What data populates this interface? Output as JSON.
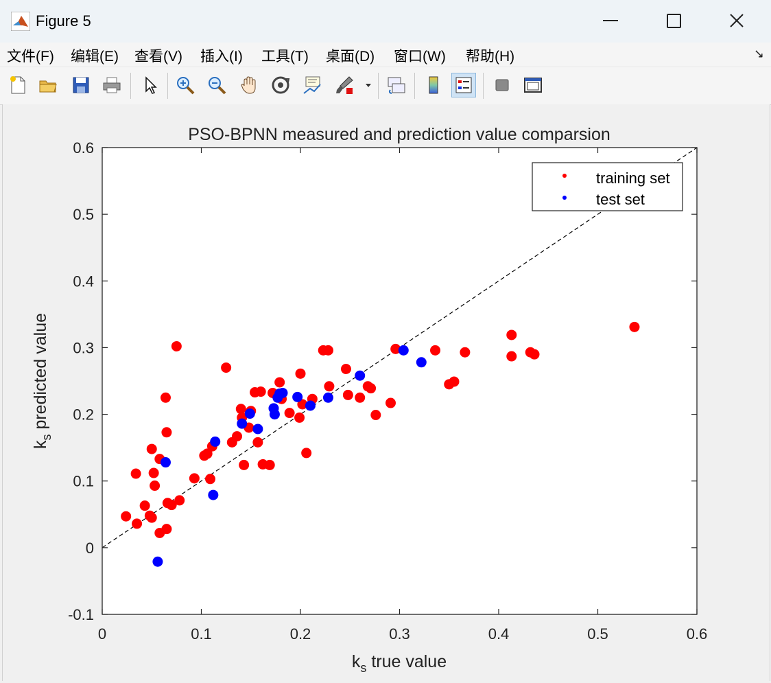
{
  "window": {
    "title": "Figure 5"
  },
  "menu": [
    "文件(F)",
    "编辑(E)",
    "查看(V)",
    "插入(I)",
    "工具(T)",
    "桌面(D)",
    "窗口(W)",
    "帮助(H)"
  ],
  "toolbar": [
    "new-figure-icon",
    "open-icon",
    "save-icon",
    "print-icon",
    "select-arrow-icon",
    "zoom-in-icon",
    "zoom-out-icon",
    "pan-icon",
    "rotate-3d-icon",
    "data-cursor-icon",
    "brush-icon",
    "link-plot-icon",
    "colorbar-icon",
    "legend-icon",
    "hide-plot-tools-icon",
    "show-plot-tools-icon"
  ],
  "colors": {
    "training": "#ff0000",
    "test": "#0000ff"
  },
  "chart_data": {
    "type": "scatter",
    "title": "PSO-BPNN measured and prediction value comparsion",
    "xlabel": {
      "base": "k",
      "sub": "s",
      "rest": " true value"
    },
    "ylabel": {
      "base": "k",
      "sub": "s",
      "rest": " predicted value"
    },
    "xlim": [
      0,
      0.6
    ],
    "ylim": [
      -0.1,
      0.6
    ],
    "xticks": [
      "0",
      "0.1",
      "0.2",
      "0.3",
      "0.4",
      "0.5",
      "0.6"
    ],
    "yticks": [
      "-0.1",
      "0",
      "0.1",
      "0.2",
      "0.3",
      "0.4",
      "0.5",
      "0.6"
    ],
    "grid": false,
    "legend_position": "top-right",
    "reference_line": {
      "style": "dashed",
      "from": [
        0,
        0
      ],
      "to": [
        0.6,
        0.6
      ]
    },
    "series": [
      {
        "name": "training set",
        "color": "#ff0000",
        "points": [
          [
            0.024,
            0.047
          ],
          [
            0.034,
            0.111
          ],
          [
            0.035,
            0.036
          ],
          [
            0.043,
            0.063
          ],
          [
            0.048,
            0.048
          ],
          [
            0.05,
            0.045
          ],
          [
            0.05,
            0.148
          ],
          [
            0.052,
            0.112
          ],
          [
            0.053,
            0.093
          ],
          [
            0.058,
            0.022
          ],
          [
            0.058,
            0.133
          ],
          [
            0.064,
            0.225
          ],
          [
            0.065,
            0.028
          ],
          [
            0.065,
            0.173
          ],
          [
            0.066,
            0.067
          ],
          [
            0.07,
            0.064
          ],
          [
            0.075,
            0.302
          ],
          [
            0.078,
            0.071
          ],
          [
            0.093,
            0.104
          ],
          [
            0.103,
            0.138
          ],
          [
            0.106,
            0.141
          ],
          [
            0.109,
            0.103
          ],
          [
            0.111,
            0.152
          ],
          [
            0.125,
            0.27
          ],
          [
            0.131,
            0.158
          ],
          [
            0.136,
            0.167
          ],
          [
            0.14,
            0.208
          ],
          [
            0.141,
            0.195
          ],
          [
            0.143,
            0.124
          ],
          [
            0.148,
            0.18
          ],
          [
            0.15,
            0.205
          ],
          [
            0.154,
            0.233
          ],
          [
            0.157,
            0.158
          ],
          [
            0.16,
            0.234
          ],
          [
            0.162,
            0.125
          ],
          [
            0.169,
            0.124
          ],
          [
            0.172,
            0.232
          ],
          [
            0.179,
            0.248
          ],
          [
            0.181,
            0.223
          ],
          [
            0.189,
            0.202
          ],
          [
            0.199,
            0.195
          ],
          [
            0.2,
            0.261
          ],
          [
            0.202,
            0.215
          ],
          [
            0.206,
            0.142
          ],
          [
            0.212,
            0.223
          ],
          [
            0.223,
            0.296
          ],
          [
            0.228,
            0.296
          ],
          [
            0.229,
            0.242
          ],
          [
            0.246,
            0.268
          ],
          [
            0.248,
            0.229
          ],
          [
            0.26,
            0.225
          ],
          [
            0.268,
            0.242
          ],
          [
            0.271,
            0.239
          ],
          [
            0.276,
            0.199
          ],
          [
            0.291,
            0.217
          ],
          [
            0.296,
            0.298
          ],
          [
            0.336,
            0.296
          ],
          [
            0.35,
            0.245
          ],
          [
            0.355,
            0.249
          ],
          [
            0.366,
            0.293
          ],
          [
            0.413,
            0.319
          ],
          [
            0.413,
            0.287
          ],
          [
            0.432,
            0.293
          ],
          [
            0.436,
            0.29
          ],
          [
            0.537,
            0.331
          ]
        ]
      },
      {
        "name": "test set",
        "color": "#0000ff",
        "points": [
          [
            0.056,
            -0.021
          ],
          [
            0.064,
            0.128
          ],
          [
            0.112,
            0.079
          ],
          [
            0.114,
            0.159
          ],
          [
            0.141,
            0.186
          ],
          [
            0.149,
            0.201
          ],
          [
            0.157,
            0.178
          ],
          [
            0.173,
            0.209
          ],
          [
            0.174,
            0.2
          ],
          [
            0.177,
            0.225
          ],
          [
            0.179,
            0.231
          ],
          [
            0.182,
            0.232
          ],
          [
            0.197,
            0.226
          ],
          [
            0.21,
            0.213
          ],
          [
            0.228,
            0.225
          ],
          [
            0.26,
            0.258
          ],
          [
            0.304,
            0.296
          ],
          [
            0.322,
            0.278
          ]
        ]
      }
    ]
  }
}
